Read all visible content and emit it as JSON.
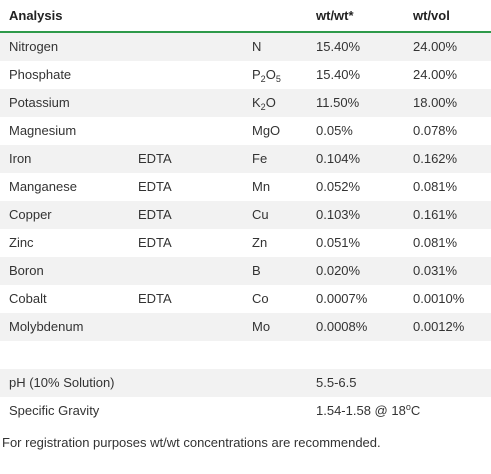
{
  "header": {
    "analysis": "Analysis",
    "wtwt": "wt/wt*",
    "wtvol": "wt/vol"
  },
  "rows": [
    {
      "name": "Nitrogen",
      "chelate": "",
      "formula": "N",
      "wtwt": "15.40%",
      "wtvol": "24.00%"
    },
    {
      "name": "Phosphate",
      "chelate": "",
      "formula": "P2O5",
      "wtwt": "15.40%",
      "wtvol": "24.00%"
    },
    {
      "name": "Potassium",
      "chelate": "",
      "formula": "K2O",
      "wtwt": "11.50%",
      "wtvol": "18.00%"
    },
    {
      "name": "Magnesium",
      "chelate": "",
      "formula": "MgO",
      "wtwt": "0.05%",
      "wtvol": "0.078%"
    },
    {
      "name": "Iron",
      "chelate": "EDTA",
      "formula": "Fe",
      "wtwt": "0.104%",
      "wtvol": "0.162%"
    },
    {
      "name": "Manganese",
      "chelate": "EDTA",
      "formula": "Mn",
      "wtwt": "0.052%",
      "wtvol": "0.081%"
    },
    {
      "name": "Copper",
      "chelate": "EDTA",
      "formula": "Cu",
      "wtwt": "0.103%",
      "wtvol": "0.161%"
    },
    {
      "name": "Zinc",
      "chelate": "EDTA",
      "formula": "Zn",
      "wtwt": "0.051%",
      "wtvol": "0.081%"
    },
    {
      "name": "Boron",
      "chelate": "",
      "formula": "B",
      "wtwt": "0.020%",
      "wtvol": "0.031%"
    },
    {
      "name": "Cobalt",
      "chelate": "EDTA",
      "formula": "Co",
      "wtwt": "0.0007%",
      "wtvol": "0.0010%"
    },
    {
      "name": "Molybdenum",
      "chelate": "",
      "formula": "Mo",
      "wtwt": "0.0008%",
      "wtvol": "0.0012%"
    }
  ],
  "ph": {
    "label": "pH (10% Solution)",
    "value": "5.5-6.5"
  },
  "gravity": {
    "label": "Specific Gravity",
    "value": "1.54-1.58 @ 18",
    "degree": "o",
    "unit": "C"
  },
  "footnote": "For registration purposes wt/wt concentrations are recommended.",
  "colors": {
    "rule": "#2e9a4a",
    "stripe": "#f2f2f2",
    "text": "#333333"
  }
}
